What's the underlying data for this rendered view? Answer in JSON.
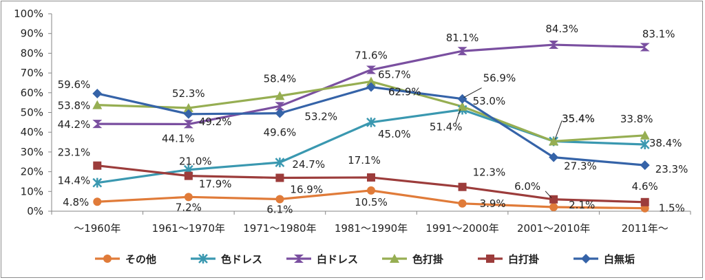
{
  "chart_data": {
    "type": "line",
    "categories": [
      "～1960年",
      "1961～1970年",
      "1971～1980年",
      "1981～1990年",
      "1991～2000年",
      "2001～2010年",
      "2011年～"
    ],
    "ylim": [
      0,
      100
    ],
    "yticks": [
      "0%",
      "10%",
      "20%",
      "30%",
      "40%",
      "50%",
      "60%",
      "70%",
      "80%",
      "90%",
      "100%"
    ],
    "grid": false,
    "legend_position": "bottom",
    "series": [
      {
        "name": "その他",
        "color": "#e07b39",
        "marker": "circle",
        "values": [
          4.8,
          7.2,
          6.1,
          10.5,
          3.9,
          2.1,
          1.5
        ],
        "labels": [
          "4.8%",
          "7.2%",
          "6.1%",
          "10.5%",
          "3.9%",
          "2.1%",
          "1.5%"
        ]
      },
      {
        "name": "色ドレス",
        "color": "#3a98b0",
        "marker": "asterisk",
        "values": [
          14.4,
          21.0,
          24.7,
          45.0,
          51.4,
          35.4,
          33.8
        ],
        "labels": [
          "14.4%",
          "21.0%",
          "24.7%",
          "45.0%",
          "51.4%",
          "35.4%",
          "33.8%"
        ]
      },
      {
        "name": "白ドレス",
        "color": "#7a4fa0",
        "marker": "hourglass",
        "values": [
          44.2,
          44.1,
          53.2,
          71.6,
          81.1,
          84.3,
          83.1
        ],
        "labels": [
          "44.2%",
          "44.1%",
          "53.2%",
          "71.6%",
          "81.1%",
          "84.3%",
          "83.1%"
        ]
      },
      {
        "name": "色打掛",
        "color": "#96ae52",
        "marker": "triangle",
        "values": [
          53.8,
          52.3,
          58.4,
          65.7,
          53.0,
          35.4,
          38.4
        ],
        "labels": [
          "53.8%",
          "52.3%",
          "58.4%",
          "65.7%",
          "53.0%",
          "35.4%",
          "38.4%"
        ]
      },
      {
        "name": "白打掛",
        "color": "#9c3c3b",
        "marker": "square",
        "values": [
          23.1,
          17.9,
          16.9,
          17.1,
          12.3,
          6.0,
          4.6
        ],
        "labels": [
          "23.1%",
          "17.9%",
          "16.9%",
          "17.1%",
          "12.3%",
          "6.0%",
          "4.6%"
        ]
      },
      {
        "name": "白無垢",
        "color": "#3563a8",
        "marker": "diamond",
        "values": [
          59.6,
          49.2,
          49.6,
          62.9,
          56.9,
          27.3,
          23.3
        ],
        "labels": [
          "59.6%",
          "49.2%",
          "49.6%",
          "62.9%",
          "56.9%",
          "27.3%",
          "23.3%"
        ]
      }
    ]
  }
}
